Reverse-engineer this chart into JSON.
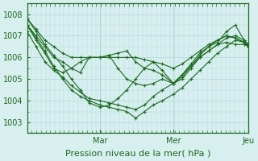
{
  "title": "Pression niveau de la mer( hPa )",
  "xlabel": "Pression niveau de la mer( hPa )",
  "background_color": "#d8eff0",
  "grid_color": "#b0d8d8",
  "line_color": "#1a6b1a",
  "ylim": [
    1002.5,
    1008.5
  ],
  "yticks": [
    1003,
    1004,
    1005,
    1006,
    1007,
    1008
  ],
  "day_labels": [
    "Mar",
    "Mer",
    "Jeu"
  ],
  "day_positions": [
    0.33,
    0.66,
    1.0
  ],
  "lines": [
    {
      "x": [
        0,
        0.04,
        0.08,
        0.12,
        0.16,
        0.2,
        0.24,
        0.28,
        0.33,
        0.37,
        0.41,
        0.45,
        0.49,
        0.53,
        0.57,
        0.61,
        0.66,
        0.7,
        0.74,
        0.78,
        0.82,
        0.86,
        0.9,
        0.94,
        0.98,
        1.0
      ],
      "y": [
        1007.8,
        1007.2,
        1006.6,
        1006.1,
        1005.6,
        1005.0,
        1004.5,
        1003.9,
        1003.7,
        1003.8,
        1004.1,
        1004.5,
        1005.0,
        1005.5,
        1005.8,
        1005.4,
        1004.8,
        1005.0,
        1005.5,
        1006.0,
        1006.3,
        1006.6,
        1006.7,
        1006.6,
        1006.6,
        1006.5
      ]
    },
    {
      "x": [
        0,
        0.04,
        0.08,
        0.12,
        0.16,
        0.2,
        0.24,
        0.28,
        0.33,
        0.37,
        0.41,
        0.45,
        0.49,
        0.53,
        0.57,
        0.61,
        0.66,
        0.7,
        0.74,
        0.78,
        0.82,
        0.86,
        0.9,
        0.94,
        0.98,
        1.0
      ],
      "y": [
        1007.5,
        1007.0,
        1006.5,
        1006.0,
        1005.8,
        1005.5,
        1005.3,
        1006.0,
        1006.0,
        1006.1,
        1006.2,
        1006.3,
        1005.8,
        1005.5,
        1005.4,
        1005.2,
        1004.8,
        1005.1,
        1005.6,
        1006.1,
        1006.5,
        1006.8,
        1007.0,
        1006.9,
        1006.7,
        1006.6
      ]
    },
    {
      "x": [
        0,
        0.04,
        0.08,
        0.12,
        0.16,
        0.2,
        0.24,
        0.28,
        0.33,
        0.37,
        0.41,
        0.45,
        0.49,
        0.53,
        0.57,
        0.61,
        0.66,
        0.7,
        0.74,
        0.78,
        0.82,
        0.86,
        0.9,
        0.94,
        0.98,
        1.0
      ],
      "y": [
        1007.8,
        1007.3,
        1006.8,
        1006.5,
        1006.2,
        1006.0,
        1006.0,
        1006.0,
        1006.0,
        1006.0,
        1006.0,
        1006.0,
        1006.0,
        1005.9,
        1005.8,
        1005.7,
        1005.5,
        1005.7,
        1006.0,
        1006.3,
        1006.6,
        1006.8,
        1007.0,
        1006.9,
        1006.7,
        1006.6
      ]
    },
    {
      "x": [
        0,
        0.04,
        0.08,
        0.12,
        0.16,
        0.2,
        0.24,
        0.28,
        0.33,
        0.37,
        0.41,
        0.45,
        0.49,
        0.53,
        0.57,
        0.61,
        0.66,
        0.7,
        0.74,
        0.78,
        0.82,
        0.86,
        0.9,
        0.94,
        0.98,
        1.0
      ],
      "y": [
        1007.5,
        1006.8,
        1006.2,
        1005.5,
        1005.3,
        1005.5,
        1005.8,
        1006.0,
        1006.0,
        1006.1,
        1005.5,
        1005.0,
        1004.8,
        1004.7,
        1004.8,
        1005.0,
        1004.8,
        1005.2,
        1005.7,
        1006.2,
        1006.5,
        1006.7,
        1007.2,
        1007.5,
        1006.8,
        1006.6
      ]
    },
    {
      "x": [
        0,
        0.04,
        0.08,
        0.12,
        0.16,
        0.2,
        0.24,
        0.28,
        0.33,
        0.37,
        0.41,
        0.45,
        0.49,
        0.53,
        0.57,
        0.61,
        0.66,
        0.7,
        0.74,
        0.78,
        0.82,
        0.86,
        0.9,
        0.94,
        0.98,
        1.0
      ],
      "y": [
        1007.2,
        1006.5,
        1005.8,
        1005.4,
        1005.1,
        1004.7,
        1004.4,
        1004.1,
        1004.0,
        1003.9,
        1003.8,
        1003.7,
        1003.6,
        1003.8,
        1004.2,
        1004.5,
        1004.8,
        1005.2,
        1005.6,
        1006.0,
        1006.3,
        1006.6,
        1006.9,
        1007.0,
        1006.8,
        1006.5
      ]
    },
    {
      "x": [
        0,
        0.04,
        0.08,
        0.12,
        0.16,
        0.2,
        0.24,
        0.28,
        0.33,
        0.37,
        0.41,
        0.45,
        0.49,
        0.53,
        0.57,
        0.61,
        0.66,
        0.7,
        0.74,
        0.78,
        0.82,
        0.86,
        0.9,
        0.94,
        0.98,
        1.0
      ],
      "y": [
        1007.5,
        1006.9,
        1006.3,
        1005.6,
        1005.0,
        1004.5,
        1004.2,
        1004.0,
        1003.8,
        1003.7,
        1003.6,
        1003.5,
        1003.2,
        1003.5,
        1003.8,
        1004.0,
        1004.3,
        1004.6,
        1005.0,
        1005.4,
        1005.8,
        1006.2,
        1006.5,
        1006.8,
        1006.7,
        1006.5
      ]
    }
  ]
}
